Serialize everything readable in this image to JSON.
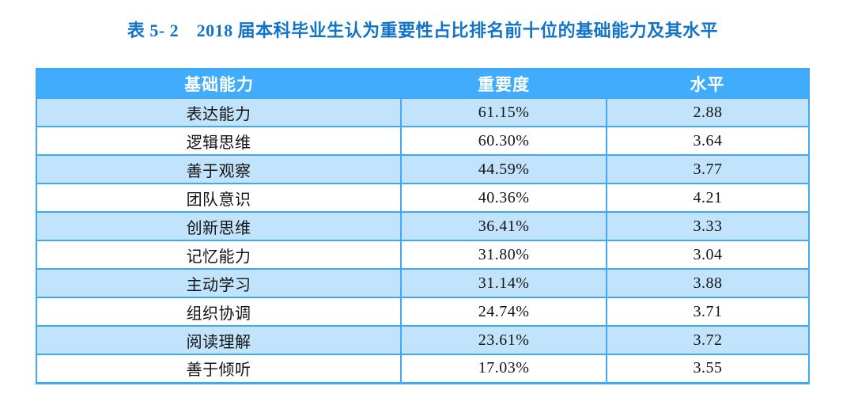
{
  "title": {
    "text": "表 5- 2　2018 届本科毕业生认为重要性占比排名前十位的基础能力及其水平",
    "color": "#1273C7"
  },
  "table": {
    "headers": {
      "ability": "基础能力",
      "importance": "重要度",
      "level": "水平"
    },
    "rows": [
      {
        "ability": "表达能力",
        "importance": "61.15%",
        "level": "2.88"
      },
      {
        "ability": "逻辑思维",
        "importance": "60.30%",
        "level": "3.64"
      },
      {
        "ability": "善于观察",
        "importance": "44.59%",
        "level": "3.77"
      },
      {
        "ability": "团队意识",
        "importance": "40.36%",
        "level": "4.21"
      },
      {
        "ability": "创新思维",
        "importance": "36.41%",
        "level": "3.33"
      },
      {
        "ability": "记忆能力",
        "importance": "31.80%",
        "level": "3.04"
      },
      {
        "ability": "主动学习",
        "importance": "31.14%",
        "level": "3.88"
      },
      {
        "ability": "组织协调",
        "importance": "24.74%",
        "level": "3.71"
      },
      {
        "ability": "阅读理解",
        "importance": "23.61%",
        "level": "3.72"
      },
      {
        "ability": "善于倾听",
        "importance": "17.03%",
        "level": "3.55"
      }
    ],
    "colors": {
      "header_bg": "#41ABFC",
      "header_text": "#ffffff",
      "row_alt_bg": "#C2E3FC",
      "row_bg": "#ffffff",
      "border": "#3FA9F8",
      "cell_text": "#141414"
    }
  },
  "chart_data": {
    "type": "table",
    "title": "表 5- 2　2018 届本科毕业生认为重要性占比排名前十位的基础能力及其水平",
    "columns": [
      "基础能力",
      "重要度",
      "水平"
    ],
    "rows": [
      [
        "表达能力",
        "61.15%",
        "2.88"
      ],
      [
        "逻辑思维",
        "60.30%",
        "3.64"
      ],
      [
        "善于观察",
        "44.59%",
        "3.77"
      ],
      [
        "团队意识",
        "40.36%",
        "4.21"
      ],
      [
        "创新思维",
        "36.41%",
        "3.33"
      ],
      [
        "记忆能力",
        "31.80%",
        "3.04"
      ],
      [
        "主动学习",
        "31.14%",
        "3.88"
      ],
      [
        "组织协调",
        "24.74%",
        "3.71"
      ],
      [
        "阅读理解",
        "23.61%",
        "3.72"
      ],
      [
        "善于倾听",
        "17.03%",
        "3.55"
      ]
    ]
  }
}
